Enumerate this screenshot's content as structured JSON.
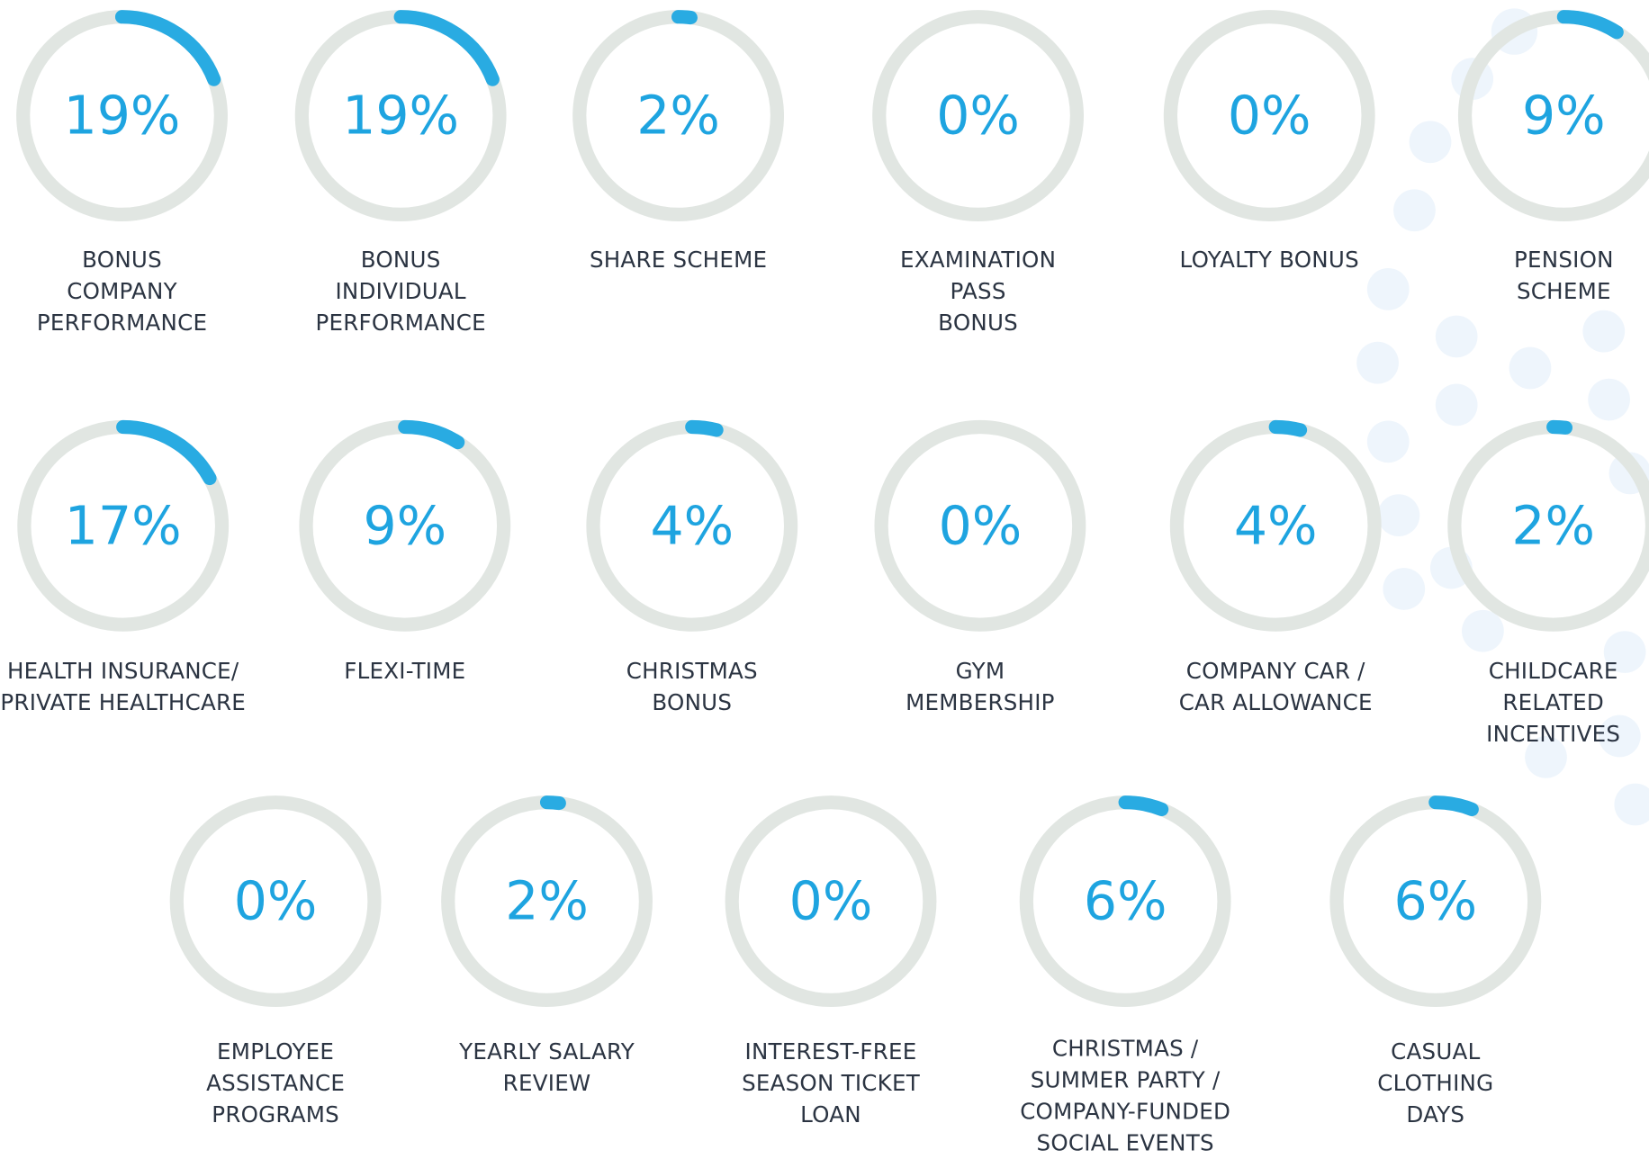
{
  "chart_data": {
    "type": "gauge",
    "categories": [
      "BONUS\nCOMPANY\nPERFORMANCE",
      "BONUS\nINDIVIDUAL\nPERFORMANCE",
      "SHARE SCHEME",
      "EXAMINATION\nPASS\nBONUS",
      "LOYALTY BONUS",
      "PENSION\nSCHEME",
      "HEALTH INSURANCE/\nPRIVATE HEALTHCARE",
      "FLEXI-TIME",
      "CHRISTMAS\nBONUS",
      "GYM\nMEMBERSHIP",
      "COMPANY CAR /\nCAR ALLOWANCE",
      "CHILDCARE\nRELATED\nINCENTIVES",
      "EMPLOYEE\nASSISTANCE\nPROGRAMS",
      "YEARLY SALARY\nREVIEW",
      "INTEREST-FREE\nSEASON TICKET\nLOAN",
      "CHRISTMAS /\nSUMMER PARTY /\nCOMPANY-FUNDED\nSOCIAL EVENTS",
      "CASUAL\nCLOTHING\nDAYS"
    ],
    "values": [
      19,
      19,
      2,
      0,
      0,
      9,
      17,
      9,
      4,
      0,
      4,
      2,
      0,
      2,
      0,
      6,
      6
    ],
    "value_labels": [
      "19%",
      "19%",
      "2%",
      "0%",
      "0%",
      "9%",
      "17%",
      "9%",
      "4%",
      "0%",
      "4%",
      "2%",
      "0%",
      "2%",
      "0%",
      "6%",
      "6%"
    ],
    "ylim": [
      0,
      100
    ],
    "color": "#29abe2",
    "track_color": "#e1e6e2"
  }
}
